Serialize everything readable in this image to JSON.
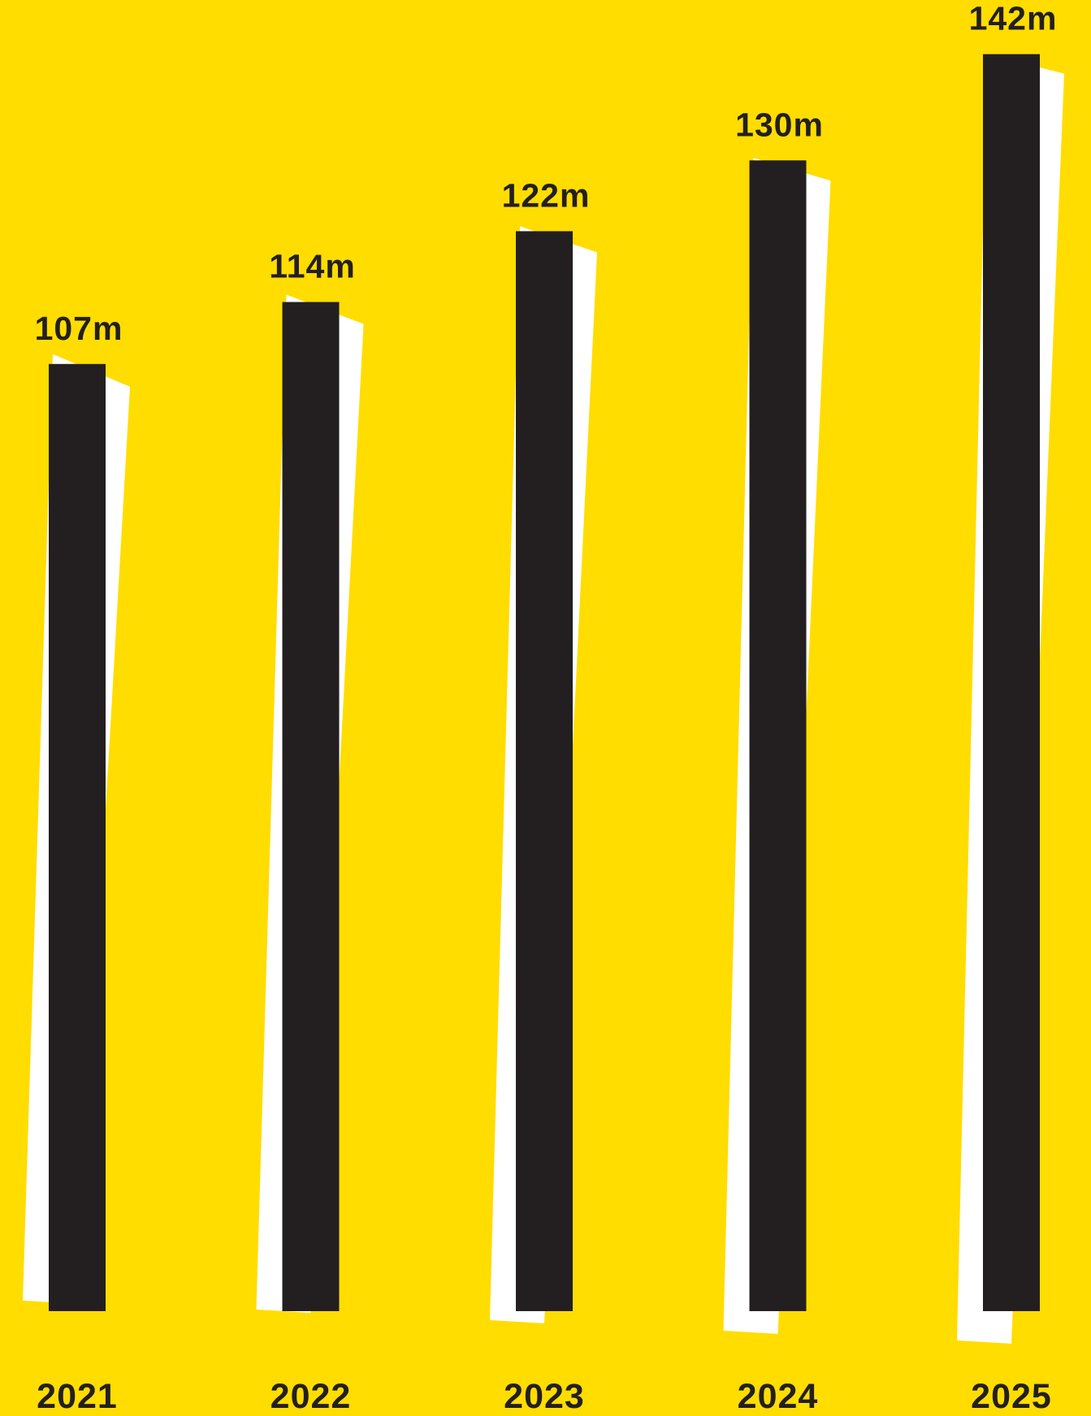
{
  "chart_data": {
    "type": "bar",
    "categories": [
      "2021",
      "2022",
      "2023",
      "2024",
      "2025"
    ],
    "values": [
      107,
      114,
      122,
      130,
      142
    ],
    "data_labels": [
      "107m",
      "114m",
      "122m",
      "130m",
      "142m"
    ],
    "title": "",
    "xlabel": "",
    "ylabel": "",
    "ylim": [
      0,
      142
    ],
    "grid": false,
    "legend": "none",
    "colors": {
      "background": "#FFDD00",
      "bar": "#231F20",
      "bar_shadow": "#FFFFFF",
      "text": "#231F20"
    }
  }
}
